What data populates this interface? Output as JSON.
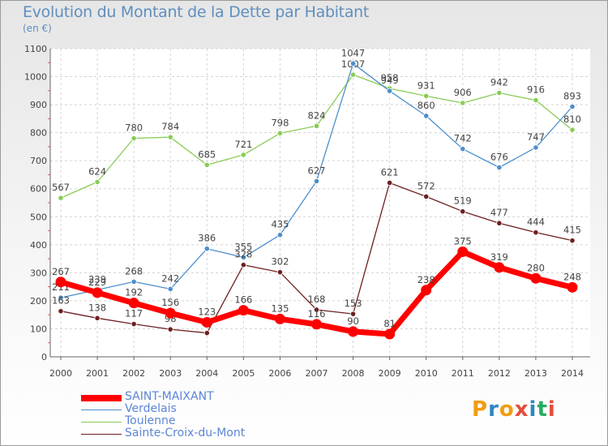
{
  "title": "Evolution du Montant de la Dette par Habitant",
  "unit": "(en €)",
  "logo": {
    "text": "Proxiti",
    "letters": [
      "P",
      "r",
      "o",
      "x",
      "i",
      "t",
      "i"
    ],
    "colors": [
      "#f39c12",
      "#2e86c1",
      "#f39c12",
      "#e74c3c",
      "#2e86c1",
      "#27ae60",
      "#e74c3c"
    ]
  },
  "chart_data": {
    "type": "line",
    "title": "Evolution du Montant de la Dette par Habitant",
    "ylabel": "(en €)",
    "xlabel": "",
    "x": [
      "2000",
      "2001",
      "2002",
      "2003",
      "2004",
      "2005",
      "2006",
      "2007",
      "2008",
      "2009",
      "2010",
      "2011",
      "2012",
      "2013",
      "2014"
    ],
    "ylim": [
      0,
      1100
    ],
    "yticks": [
      0,
      100,
      200,
      300,
      400,
      500,
      600,
      700,
      800,
      900,
      1000,
      1100
    ],
    "grid": true,
    "legend": "bottom-left",
    "series": [
      {
        "name": "Toulenne",
        "color": "#88cc55",
        "values": [
          567,
          624,
          780,
          784,
          685,
          721,
          798,
          824,
          1007,
          958,
          931,
          906,
          942,
          916,
          810
        ]
      },
      {
        "name": "Verdelais",
        "color": "#4d8fcc",
        "values": [
          211,
          239,
          268,
          242,
          386,
          355,
          435,
          627,
          1047,
          949,
          860,
          742,
          676,
          747,
          893
        ]
      },
      {
        "name": "Sainte-Croix-du-Mont",
        "color": "#6e1f1f",
        "values": [
          163,
          138,
          117,
          98,
          85,
          328,
          302,
          168,
          153,
          621,
          572,
          519,
          477,
          444,
          415
        ]
      },
      {
        "name": "SAINT-MAIXANT",
        "color": "#ff0000",
        "values": [
          267,
          229,
          192,
          156,
          123,
          166,
          135,
          116,
          90,
          81,
          238,
          375,
          319,
          280,
          248
        ]
      }
    ]
  }
}
